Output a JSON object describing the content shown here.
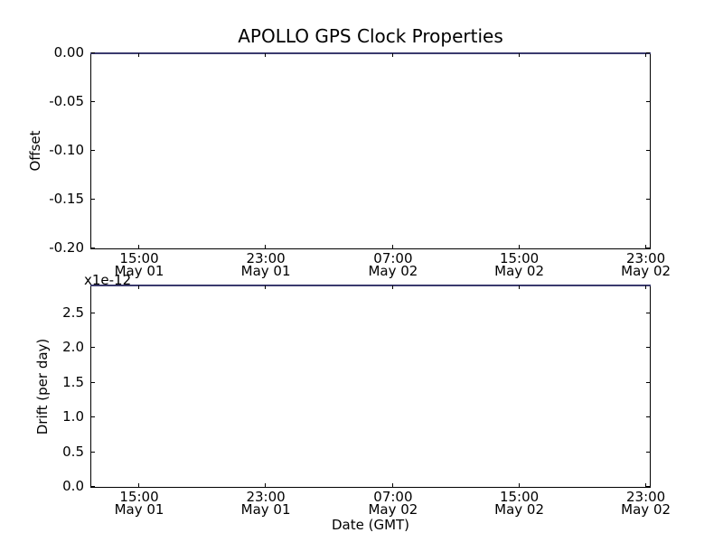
{
  "figure": {
    "background": "#ffffff",
    "spine_color": "#000000",
    "line_color": "#3a3a6e"
  },
  "chart_data": [
    {
      "type": "line",
      "title": "APOLLO GPS Clock Properties",
      "ylabel": "Offset",
      "ylim": [
        -0.2,
        0.0
      ],
      "grid": false,
      "legend": null,
      "y_ticks": [
        {
          "value": 0.0,
          "label": "0.00"
        },
        {
          "value": -0.05,
          "label": "-0.05"
        },
        {
          "value": -0.1,
          "label": "-0.10"
        },
        {
          "value": -0.15,
          "label": "-0.15"
        },
        {
          "value": -0.2,
          "label": "-0.20"
        }
      ],
      "x_ticks": [
        {
          "frac": 0.0858,
          "time": "15:00",
          "date": "May 01"
        },
        {
          "frac": 0.3124,
          "time": "23:00",
          "date": "May 01"
        },
        {
          "frac": 0.5403,
          "time": "07:00",
          "date": "May 02"
        },
        {
          "frac": 0.7663,
          "time": "15:00",
          "date": "May 02"
        },
        {
          "frac": 0.9929,
          "time": "23:00",
          "date": "May 02"
        }
      ],
      "series": [
        {
          "name": "offset",
          "color": "#3a3a6e",
          "constant_y": 0.0,
          "description": "flat line drawn along the top edge of the axes at offset 0.00"
        }
      ]
    },
    {
      "type": "line",
      "title": "",
      "ylabel": "Drift (per day)",
      "y_scale_text": "x1e-12",
      "xlabel": "Date (GMT)",
      "ylim": [
        0.0,
        2.9
      ],
      "grid": false,
      "legend": null,
      "y_ticks": [
        {
          "value": 2.5,
          "label": "2.5"
        },
        {
          "value": 2.0,
          "label": "2.0"
        },
        {
          "value": 1.5,
          "label": "1.5"
        },
        {
          "value": 1.0,
          "label": "1.0"
        },
        {
          "value": 0.5,
          "label": "0.5"
        },
        {
          "value": 0.0,
          "label": "0.0"
        }
      ],
      "x_ticks": [
        {
          "frac": 0.0858,
          "time": "15:00",
          "date": "May 01"
        },
        {
          "frac": 0.3124,
          "time": "23:00",
          "date": "May 01"
        },
        {
          "frac": 0.5403,
          "time": "07:00",
          "date": "May 02"
        },
        {
          "frac": 0.7663,
          "time": "15:00",
          "date": "May 02"
        },
        {
          "frac": 0.9929,
          "time": "23:00",
          "date": "May 02"
        }
      ],
      "series": [
        {
          "name": "drift",
          "color": "#3a3a6e",
          "constant_y": 2.9,
          "description": "flat line drawn along the top edge of the axes, approx 2.9e-12 per day"
        }
      ]
    }
  ]
}
